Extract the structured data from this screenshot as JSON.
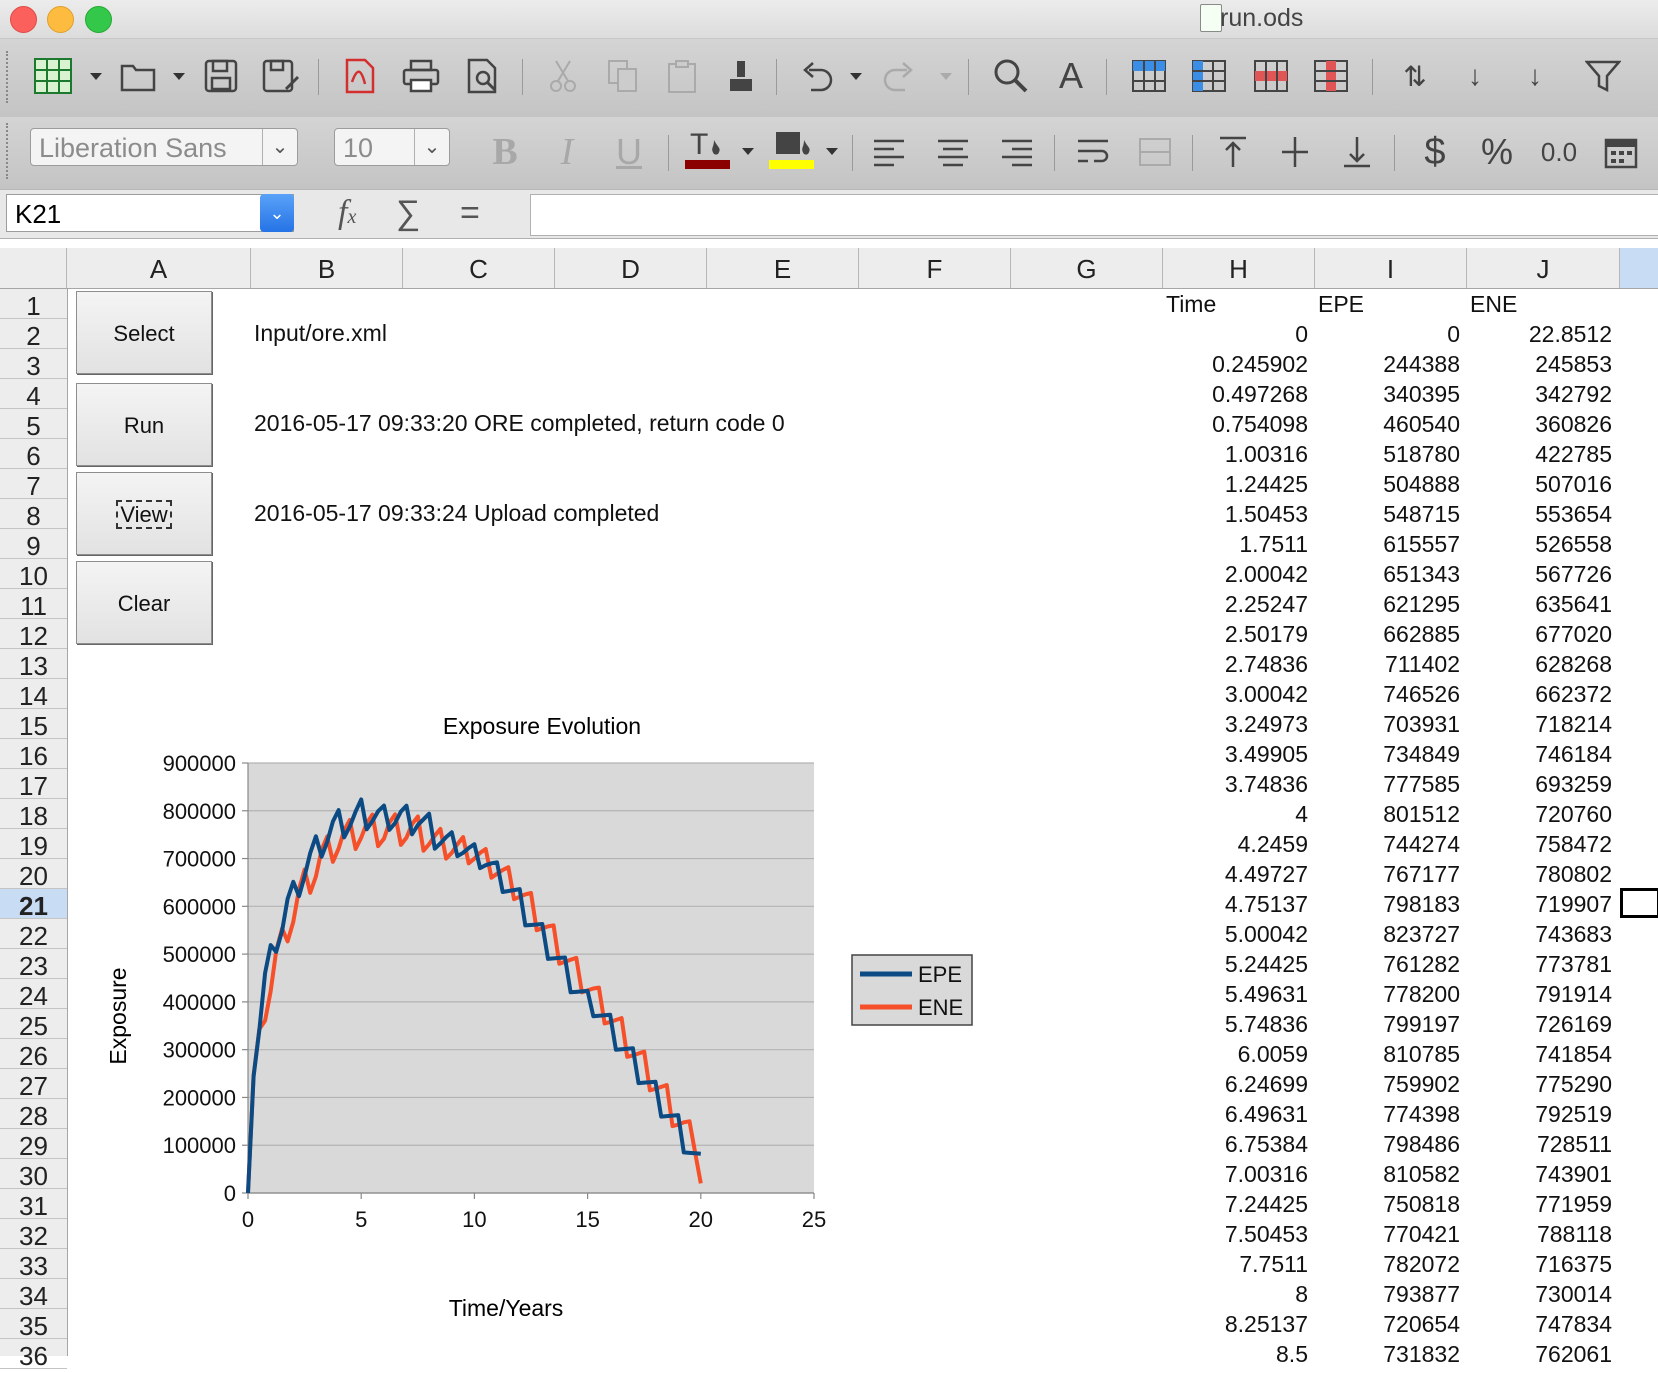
{
  "window": {
    "title": "run.ods"
  },
  "font": {
    "name": "Liberation Sans",
    "size": "10"
  },
  "name_box": "K21",
  "columns": [
    "A",
    "B",
    "C",
    "D",
    "E",
    "F",
    "G",
    "H",
    "I",
    "J"
  ],
  "rows": [
    "1",
    "2",
    "3",
    "4",
    "5",
    "6",
    "7",
    "8",
    "9",
    "10",
    "11",
    "12",
    "13",
    "14",
    "15",
    "16",
    "17",
    "18",
    "19",
    "20",
    "21",
    "22",
    "23",
    "24",
    "25",
    "26",
    "27",
    "28",
    "29",
    "30",
    "31",
    "32",
    "33",
    "34",
    "35",
    "36"
  ],
  "selected_row": "21",
  "buttons": {
    "select": "Select",
    "run": "Run",
    "view": "View",
    "clear": "Clear"
  },
  "cells": {
    "b2": "Input/ore.xml",
    "b5": "2016-05-17 09:33:20 ORE completed, return code 0",
    "b8": "2016-05-17 09:33:24 Upload completed"
  },
  "table": {
    "headers": [
      "Time",
      "EPE",
      "ENE"
    ],
    "rows": [
      [
        "0",
        "0",
        "22.8512"
      ],
      [
        "0.245902",
        "244388",
        "245853"
      ],
      [
        "0.497268",
        "340395",
        "342792"
      ],
      [
        "0.754098",
        "460540",
        "360826"
      ],
      [
        "1.00316",
        "518780",
        "422785"
      ],
      [
        "1.24425",
        "504888",
        "507016"
      ],
      [
        "1.50453",
        "548715",
        "553654"
      ],
      [
        "1.7511",
        "615557",
        "526558"
      ],
      [
        "2.00042",
        "651343",
        "567726"
      ],
      [
        "2.25247",
        "621295",
        "635641"
      ],
      [
        "2.50179",
        "662885",
        "677020"
      ],
      [
        "2.74836",
        "711402",
        "628268"
      ],
      [
        "3.00042",
        "746526",
        "662372"
      ],
      [
        "3.24973",
        "703931",
        "718214"
      ],
      [
        "3.49905",
        "734849",
        "746184"
      ],
      [
        "3.74836",
        "777585",
        "693259"
      ],
      [
        "4",
        "801512",
        "720760"
      ],
      [
        "4.2459",
        "744274",
        "758472"
      ],
      [
        "4.49727",
        "767177",
        "780802"
      ],
      [
        "4.75137",
        "798183",
        "719907"
      ],
      [
        "5.00042",
        "823727",
        "743683"
      ],
      [
        "5.24425",
        "761282",
        "773781"
      ],
      [
        "5.49631",
        "778200",
        "791914"
      ],
      [
        "5.74836",
        "799197",
        "726169"
      ],
      [
        "6.0059",
        "810785",
        "741854"
      ],
      [
        "6.24699",
        "759902",
        "775290"
      ],
      [
        "6.49631",
        "774398",
        "792519"
      ],
      [
        "6.75384",
        "798486",
        "728511"
      ],
      [
        "7.00316",
        "810582",
        "743901"
      ],
      [
        "7.24425",
        "750818",
        "771959"
      ],
      [
        "7.50453",
        "770421",
        "788118"
      ],
      [
        "7.7511",
        "782072",
        "716375"
      ],
      [
        "8",
        "793877",
        "730014"
      ],
      [
        "8.25137",
        "720654",
        "747834"
      ],
      [
        "8.5",
        "731832",
        "762061"
      ]
    ]
  },
  "chart_data": {
    "type": "line",
    "title": "Exposure Evolution",
    "xlabel": "Time/Years",
    "ylabel": "Exposure",
    "xlim": [
      0,
      25
    ],
    "ylim": [
      0,
      900000
    ],
    "x_ticks": [
      "0",
      "5",
      "10",
      "15",
      "20",
      "25"
    ],
    "y_ticks": [
      "0",
      "100000",
      "200000",
      "300000",
      "400000",
      "500000",
      "600000",
      "700000",
      "800000",
      "900000"
    ],
    "grid": true,
    "legend": "right",
    "series": [
      {
        "name": "EPE",
        "color": "#0b4a82",
        "x": [
          0,
          0.246,
          0.497,
          0.754,
          1.003,
          1.244,
          1.505,
          1.751,
          2.0,
          2.252,
          2.502,
          2.748,
          3.0,
          3.25,
          3.499,
          3.748,
          4.0,
          4.246,
          4.497,
          4.751,
          5.0,
          5.244,
          5.496,
          5.748,
          6.006,
          6.247,
          6.496,
          6.754,
          7.003,
          7.244,
          7.505,
          7.751,
          8.0,
          8.251,
          8.5,
          8.75,
          9.0,
          9.25,
          9.5,
          9.75,
          10.0,
          10.25,
          10.5,
          10.75,
          11.0,
          11.25,
          11.5,
          11.75,
          12.0,
          12.25,
          12.5,
          12.75,
          13.0,
          13.25,
          13.5,
          13.75,
          14.0,
          14.25,
          14.5,
          14.75,
          15.0,
          15.25,
          15.5,
          15.75,
          16.0,
          16.25,
          16.5,
          16.75,
          17.0,
          17.25,
          17.5,
          17.75,
          18.0,
          18.25,
          18.5,
          18.75,
          19.0,
          19.25,
          19.5,
          19.75,
          20.0
        ],
        "y": [
          0,
          244388,
          340395,
          460540,
          518780,
          504888,
          548715,
          615557,
          651343,
          621295,
          662885,
          711402,
          746526,
          703931,
          734849,
          777585,
          801512,
          744274,
          767177,
          798183,
          823727,
          761282,
          778200,
          799197,
          810785,
          759902,
          774398,
          798486,
          810582,
          750818,
          770421,
          782072,
          793877,
          720654,
          731832,
          745000,
          755000,
          705000,
          712000,
          722000,
          730000,
          680000,
          686000,
          690000,
          692000,
          630000,
          632000,
          634000,
          636000,
          560000,
          561000,
          562000,
          563000,
          490000,
          491000,
          492000,
          493000,
          420000,
          421000,
          422000,
          423000,
          370000,
          371000,
          372000,
          373000,
          300000,
          301000,
          302000,
          303000,
          230000,
          231000,
          232000,
          233000,
          160000,
          161000,
          162000,
          163000,
          85000,
          84000,
          83000,
          82000
        ]
      },
      {
        "name": "ENE",
        "color": "#f5502a",
        "x": [
          0,
          0.246,
          0.497,
          0.754,
          1.003,
          1.244,
          1.505,
          1.751,
          2.0,
          2.252,
          2.502,
          2.748,
          3.0,
          3.25,
          3.499,
          3.748,
          4.0,
          4.246,
          4.497,
          4.751,
          5.0,
          5.244,
          5.496,
          5.748,
          6.006,
          6.247,
          6.496,
          6.754,
          7.003,
          7.244,
          7.505,
          7.751,
          8.0,
          8.251,
          8.5,
          8.75,
          9.0,
          9.25,
          9.5,
          9.75,
          10.0,
          10.25,
          10.5,
          10.75,
          11.0,
          11.25,
          11.5,
          11.75,
          12.0,
          12.25,
          12.5,
          12.75,
          13.0,
          13.25,
          13.5,
          13.75,
          14.0,
          14.25,
          14.5,
          14.75,
          15.0,
          15.25,
          15.5,
          15.75,
          16.0,
          16.25,
          16.5,
          16.75,
          17.0,
          17.25,
          17.5,
          17.75,
          18.0,
          18.25,
          18.5,
          18.75,
          19.0,
          19.25,
          19.5,
          19.75,
          20.0
        ],
        "y": [
          22.85,
          245853,
          342792,
          360826,
          422785,
          507016,
          553654,
          526558,
          567726,
          635641,
          677020,
          628268,
          662372,
          718214,
          746184,
          693259,
          720760,
          758472,
          780802,
          719907,
          743683,
          773781,
          791914,
          726169,
          741854,
          775290,
          792519,
          728511,
          743901,
          771959,
          788118,
          716375,
          730014,
          747834,
          762061,
          700000,
          712000,
          730000,
          745000,
          690000,
          700000,
          712000,
          720000,
          660000,
          668000,
          676000,
          682000,
          615000,
          620000,
          625000,
          628000,
          550000,
          554000,
          558000,
          560000,
          480000,
          484000,
          488000,
          492000,
          420000,
          424000,
          428000,
          430000,
          355000,
          358000,
          362000,
          366000,
          285000,
          288000,
          292000,
          296000,
          215000,
          218000,
          222000,
          226000,
          140000,
          143000,
          148000,
          150000,
          85000,
          20000
        ]
      }
    ]
  },
  "icons": {
    "format_row1": [
      "table-icon",
      "open-folder-icon",
      "save-icon",
      "save-as-icon",
      "pdf-icon",
      "print-icon",
      "print-preview-icon",
      "cut-icon",
      "copy-icon",
      "paste-icon",
      "clone-format-icon",
      "undo-icon",
      "redo-icon",
      "find-icon",
      "spellcheck-icon",
      "insert-row-icon",
      "insert-column-icon",
      "delete-row-icon",
      "delete-column-icon",
      "sort-icon",
      "sort-asc-icon",
      "sort-desc-icon",
      "autofilter-icon"
    ]
  },
  "colors": {
    "font_color": "#8b0000",
    "highlight_color": "#ffff00",
    "epe": "#0b4a82",
    "ene": "#f5502a"
  }
}
